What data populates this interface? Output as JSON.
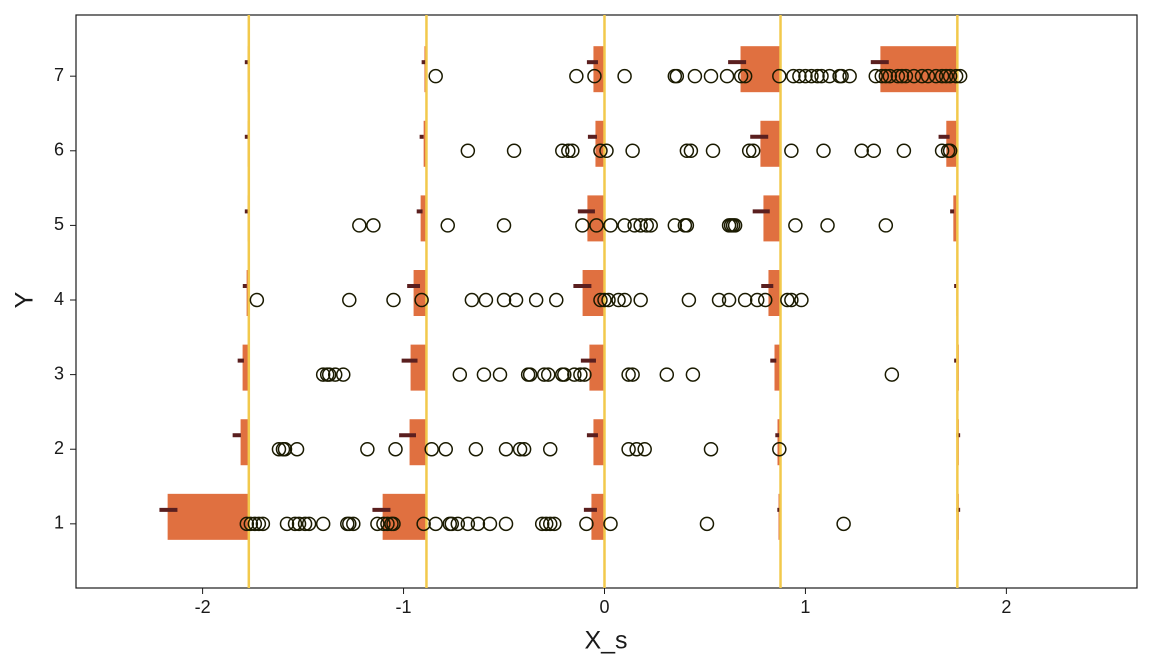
{
  "chart_data": {
    "type": "scatter",
    "x_label": "X_s",
    "y_label": "Y",
    "xlim": [
      -2.63,
      2.65
    ],
    "ylim": [
      0.14,
      7.82
    ],
    "xticks": [
      -2,
      -1,
      0,
      1,
      2
    ],
    "yticks": [
      1,
      2,
      3,
      4,
      5,
      6,
      7
    ],
    "thresholds": [
      -1.77,
      -0.886,
      0,
      0.876,
      1.756
    ],
    "threshold_color": "#f2c94c",
    "bar_color": "#e07040",
    "dash_color": "#5a1f1f",
    "point_color": "#1a1a00",
    "bars": [
      {
        "y": 7,
        "x_start": [
          -1.776,
          -0.896,
          -0.055,
          0.677,
          1.373
        ],
        "dash_x": [
          -1.78,
          -0.9,
          -0.06,
          0.66,
          1.37
        ]
      },
      {
        "y": 6,
        "x_start": [
          -1.776,
          -0.9,
          -0.045,
          0.776,
          1.701
        ],
        "dash_x": [
          -1.78,
          -0.91,
          -0.06,
          0.77,
          1.69
        ]
      },
      {
        "y": 5,
        "x_start": [
          -1.776,
          -0.915,
          -0.085,
          0.791,
          1.736
        ],
        "dash_x": [
          -1.78,
          -0.92,
          -0.09,
          0.78,
          1.73
        ]
      },
      {
        "y": 4,
        "x_start": [
          -1.781,
          -0.95,
          -0.109,
          0.816,
          1.751
        ],
        "dash_x": [
          -1.79,
          -0.95,
          -0.11,
          0.81,
          1.75
        ]
      },
      {
        "y": 3,
        "x_start": [
          -1.801,
          -0.965,
          -0.075,
          0.846,
          1.756
        ],
        "dash_x": [
          -1.81,
          -0.97,
          -0.08,
          0.84,
          1.75
        ]
      },
      {
        "y": 2,
        "x_start": [
          -1.811,
          -0.97,
          -0.055,
          0.861,
          1.761
        ],
        "dash_x": [
          -1.83,
          -0.98,
          -0.06,
          0.86,
          1.76
        ]
      },
      {
        "y": 1,
        "x_start": [
          -2.174,
          -1.104,
          -0.065,
          0.866,
          1.761
        ],
        "dash_x": [
          -2.17,
          -1.11,
          -0.07,
          0.87,
          1.76
        ]
      }
    ],
    "points": [
      {
        "y": 7,
        "x": [
          -0.84,
          -0.14,
          -0.05,
          0.1,
          0.35,
          0.36,
          0.45,
          0.53,
          0.61,
          0.68,
          0.7,
          0.87,
          0.94,
          0.97,
          1.0,
          1.03,
          1.06,
          1.08,
          1.12,
          1.17,
          1.18,
          1.22,
          1.35,
          1.38,
          1.4,
          1.42,
          1.46,
          1.48,
          1.5,
          1.54,
          1.58,
          1.61,
          1.65,
          1.68,
          1.7,
          1.72,
          1.75,
          1.77
        ]
      },
      {
        "y": 6,
        "x": [
          -0.68,
          -0.45,
          -0.21,
          -0.18,
          -0.16,
          -0.02,
          0.01,
          0.14,
          0.41,
          0.43,
          0.54,
          0.72,
          0.74,
          0.93,
          1.09,
          1.28,
          1.34,
          1.49,
          1.68,
          1.71,
          1.72
        ]
      },
      {
        "y": 5,
        "x": [
          -1.22,
          -1.15,
          -0.78,
          -0.5,
          -0.11,
          -0.04,
          0.03,
          0.1,
          0.15,
          0.18,
          0.21,
          0.23,
          0.35,
          0.4,
          0.41,
          0.62,
          0.63,
          0.64,
          0.65,
          0.95,
          1.11,
          1.4
        ]
      },
      {
        "y": 4,
        "x": [
          -1.73,
          -1.27,
          -1.05,
          -0.91,
          -0.66,
          -0.59,
          -0.5,
          -0.44,
          -0.34,
          -0.24,
          -0.02,
          0.0,
          0.02,
          0.07,
          0.1,
          0.18,
          0.42,
          0.57,
          0.62,
          0.7,
          0.76,
          0.8,
          0.91,
          0.93,
          0.98
        ]
      },
      {
        "y": 3,
        "x": [
          -1.4,
          -1.38,
          -1.37,
          -1.34,
          -1.3,
          -0.72,
          -0.6,
          -0.52,
          -0.38,
          -0.37,
          -0.3,
          -0.28,
          -0.21,
          -0.2,
          -0.15,
          -0.12,
          -0.1,
          0.12,
          0.14,
          0.31,
          0.44,
          1.43
        ]
      },
      {
        "y": 2,
        "x": [
          -1.62,
          -1.6,
          -1.59,
          -1.53,
          -1.18,
          -1.04,
          -0.86,
          -0.79,
          -0.64,
          -0.49,
          -0.42,
          -0.4,
          -0.27,
          0.12,
          0.16,
          0.2,
          0.53,
          0.87
        ]
      },
      {
        "y": 1,
        "x": [
          -1.78,
          -1.76,
          -1.74,
          -1.72,
          -1.7,
          -1.58,
          -1.54,
          -1.52,
          -1.49,
          -1.47,
          -1.4,
          -1.28,
          -1.27,
          -1.25,
          -1.13,
          -1.1,
          -1.08,
          -1.06,
          -1.05,
          -0.9,
          -0.84,
          -0.77,
          -0.76,
          -0.73,
          -0.68,
          -0.63,
          -0.57,
          -0.49,
          -0.31,
          -0.29,
          -0.27,
          -0.25,
          -0.09,
          0.03,
          0.51,
          1.19
        ]
      }
    ]
  }
}
